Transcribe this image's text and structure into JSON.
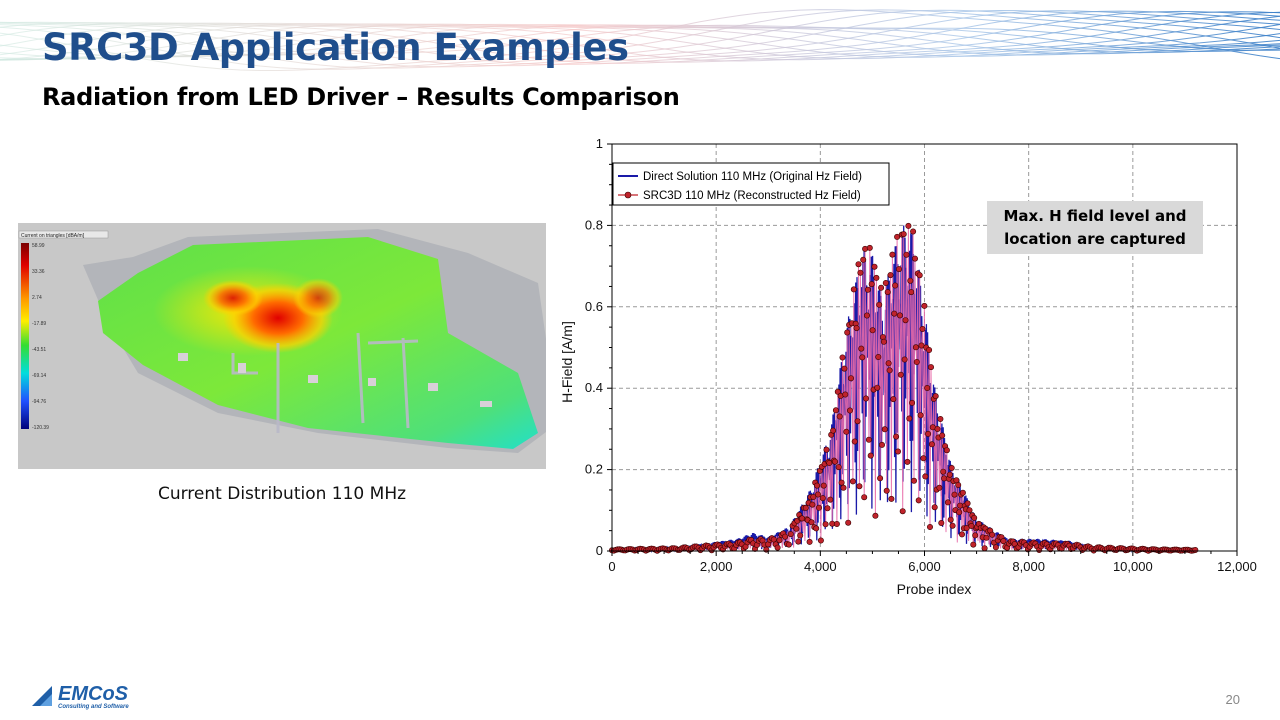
{
  "slide": {
    "title": "SRC3D Application Examples",
    "subtitle": "Radiation from LED Driver – Results Comparison",
    "caption": "Current Distribution 110 MHz",
    "callout": "Max. H field level and location are captured",
    "page_number": "20"
  },
  "simulation": {
    "panel_title": "Current on triangles [dBA/m]",
    "colorbar_ticks": [
      "58.99",
      "33.36",
      "2.74",
      "-17.89",
      "-43.51",
      "-69.14",
      "-94.76",
      "-120.39"
    ]
  },
  "logo": {
    "name": "EMCoS",
    "tagline": "Consulting and Software",
    "color": "#1f5fa8"
  },
  "chart_data": {
    "type": "line",
    "xlabel": "Probe index",
    "ylabel": "H-Field [A/m]",
    "xlim": [
      0,
      12000
    ],
    "ylim": [
      0,
      1
    ],
    "x_ticks": [
      "0",
      "2,000",
      "4,000",
      "6,000",
      "8,000",
      "10,000",
      "12,000"
    ],
    "y_ticks": [
      "0",
      "0.2",
      "0.4",
      "0.6",
      "0.8",
      "1"
    ],
    "grid": true,
    "legend_position": "top-left",
    "series": [
      {
        "name": "Direct Solution 110 MHz (Original Hz Field)",
        "color": "#1a1aa8",
        "marker": "none",
        "envelope_x": [
          0,
          1200,
          2400,
          2700,
          3000,
          3400,
          3800,
          4200,
          4500,
          4800,
          5000,
          5200,
          5400,
          5600,
          5800,
          6000,
          6200,
          6500,
          7000,
          7600,
          8200,
          8800,
          9200,
          9800,
          10500,
          11200
        ],
        "envelope_y": [
          0.005,
          0.008,
          0.03,
          0.045,
          0.035,
          0.06,
          0.15,
          0.3,
          0.55,
          0.74,
          0.73,
          0.62,
          0.74,
          0.8,
          0.78,
          0.6,
          0.4,
          0.22,
          0.08,
          0.03,
          0.03,
          0.025,
          0.012,
          0.008,
          0.005,
          0.004
        ]
      },
      {
        "name": "SRC3D 110 MHz (Reconstructed Hz Field)",
        "color": "#c0232b",
        "marker": "circle",
        "envelope_x": [
          0,
          1200,
          2400,
          2700,
          3000,
          3400,
          3800,
          4200,
          4500,
          4800,
          5000,
          5200,
          5400,
          5600,
          5800,
          6000,
          6200,
          6500,
          7000,
          7600,
          8200,
          8800,
          9200,
          9800,
          10500,
          11200
        ],
        "envelope_y": [
          0.004,
          0.007,
          0.02,
          0.03,
          0.028,
          0.05,
          0.13,
          0.28,
          0.54,
          0.76,
          0.74,
          0.63,
          0.75,
          0.81,
          0.79,
          0.6,
          0.39,
          0.21,
          0.07,
          0.025,
          0.02,
          0.018,
          0.01,
          0.007,
          0.004,
          0.003
        ]
      }
    ]
  }
}
